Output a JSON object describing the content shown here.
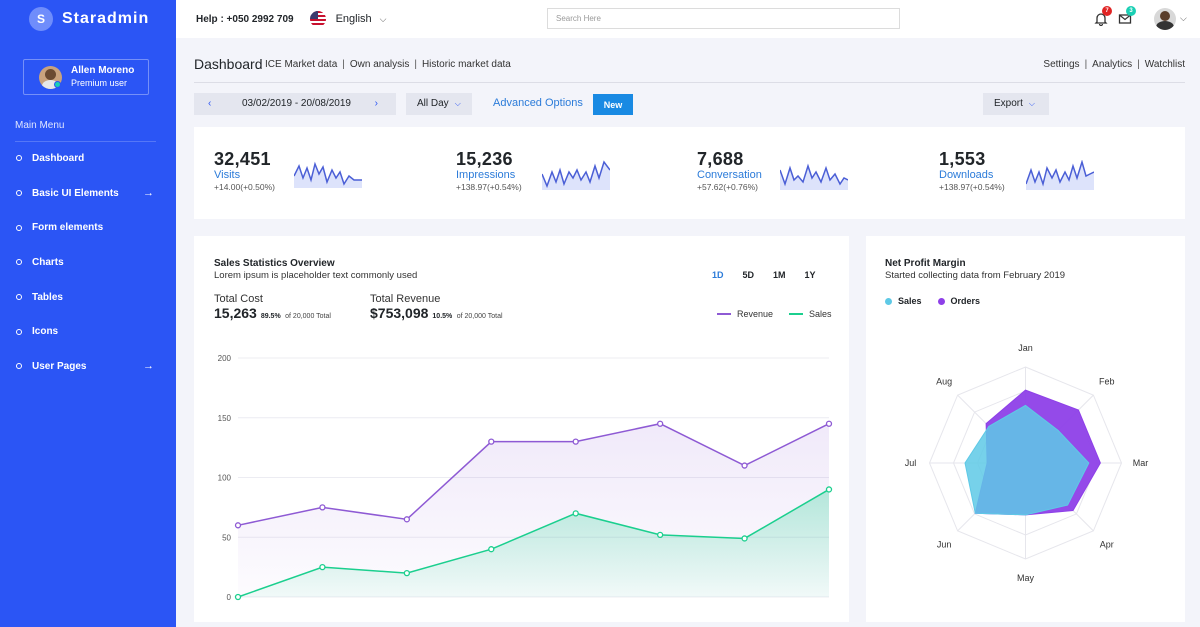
{
  "brand": {
    "initial": "S",
    "name": "Staradmin"
  },
  "profile": {
    "name": "Allen Moreno",
    "role": "Premium user"
  },
  "menu": {
    "title": "Main Menu",
    "items": [
      {
        "label": "Dashboard",
        "arrow": ""
      },
      {
        "label": "Basic UI Elements",
        "arrow": "→"
      },
      {
        "label": "Form elements",
        "arrow": ""
      },
      {
        "label": "Charts",
        "arrow": ""
      },
      {
        "label": "Tables",
        "arrow": ""
      },
      {
        "label": "Icons",
        "arrow": ""
      },
      {
        "label": "User Pages",
        "arrow": "→"
      }
    ]
  },
  "topbar": {
    "help": "Help : +050 2992 709",
    "language": "English",
    "search_placeholder": "Search Here",
    "notifications_count": "7",
    "messages_count": "3",
    "colors": {
      "notif_badge": "#e02424",
      "msg_badge": "#1bcfb4"
    }
  },
  "header": {
    "title": "Dashboard",
    "links": [
      "ICE Market data",
      "Own analysis",
      "Historic market data"
    ],
    "right_links": [
      "Settings",
      "Analytics",
      "Watchlist"
    ]
  },
  "controls": {
    "date_range": "03/02/2019 - 20/08/2019",
    "all_day": "All Day",
    "advanced_options": "Advanced Options",
    "new": "New",
    "export": "Export"
  },
  "stats": [
    {
      "value": "32,451",
      "label": "Visits",
      "change": "+14.00(+0.50%)"
    },
    {
      "value": "15,236",
      "label": "Impressions",
      "change": "+138.97(+0.54%)"
    },
    {
      "value": "7,688",
      "label": "Conversation",
      "change": "+57.62(+0.76%)"
    },
    {
      "value": "1,553",
      "label": "Downloads",
      "change": "+138.97(+0.54%)"
    }
  ],
  "sales": {
    "title": "Sales Statistics Overview",
    "subtitle": "Lorem ipsum is placeholder text commonly used",
    "periods": [
      "1D",
      "5D",
      "1M",
      "1Y"
    ],
    "total_cost": {
      "label": "Total Cost",
      "value": "15,263",
      "pct": "89.5%",
      "of": "of 20,000 Total"
    },
    "total_revenue": {
      "label": "Total Revenue",
      "value": "$753,098",
      "pct": "10.5%",
      "of": "of 20,000 Total"
    },
    "legend": {
      "revenue": "Revenue",
      "sales": "Sales"
    }
  },
  "net_profit": {
    "title": "Net Profit Margin",
    "subtitle": "Started collecting data from February 2019",
    "legend": {
      "sales": "Sales",
      "orders": "Orders"
    }
  },
  "chart_data": [
    {
      "type": "area",
      "categories": [
        "",
        "",
        "",
        "",
        "",
        "",
        "",
        ""
      ],
      "series": [
        {
          "name": "Revenue",
          "color": "#8e5ad4",
          "values": [
            60,
            75,
            65,
            130,
            130,
            145,
            110,
            145
          ]
        },
        {
          "name": "Sales",
          "color": "#1bcf8e",
          "values": [
            0,
            25,
            20,
            40,
            70,
            52,
            49,
            90
          ]
        }
      ],
      "yticks": [
        0,
        50,
        100,
        150,
        200
      ],
      "ylim": [
        0,
        200
      ],
      "grid": true,
      "legend": "top-right"
    },
    {
      "type": "radar",
      "categories": [
        "Jan",
        "Feb",
        "Mar",
        "Apr",
        "May",
        "Jun",
        "Jul",
        "Aug"
      ],
      "series": [
        {
          "name": "Orders",
          "color": "#8e40e8",
          "values": [
            76,
            78,
            78,
            70,
            54,
            74,
            40,
            58
          ]
        },
        {
          "name": "Sales",
          "color": "#5ec9e6",
          "values": [
            60,
            48,
            66,
            62,
            54,
            74,
            63,
            54
          ]
        }
      ],
      "rlim": [
        0,
        100
      ],
      "grid_rings": 4
    }
  ]
}
